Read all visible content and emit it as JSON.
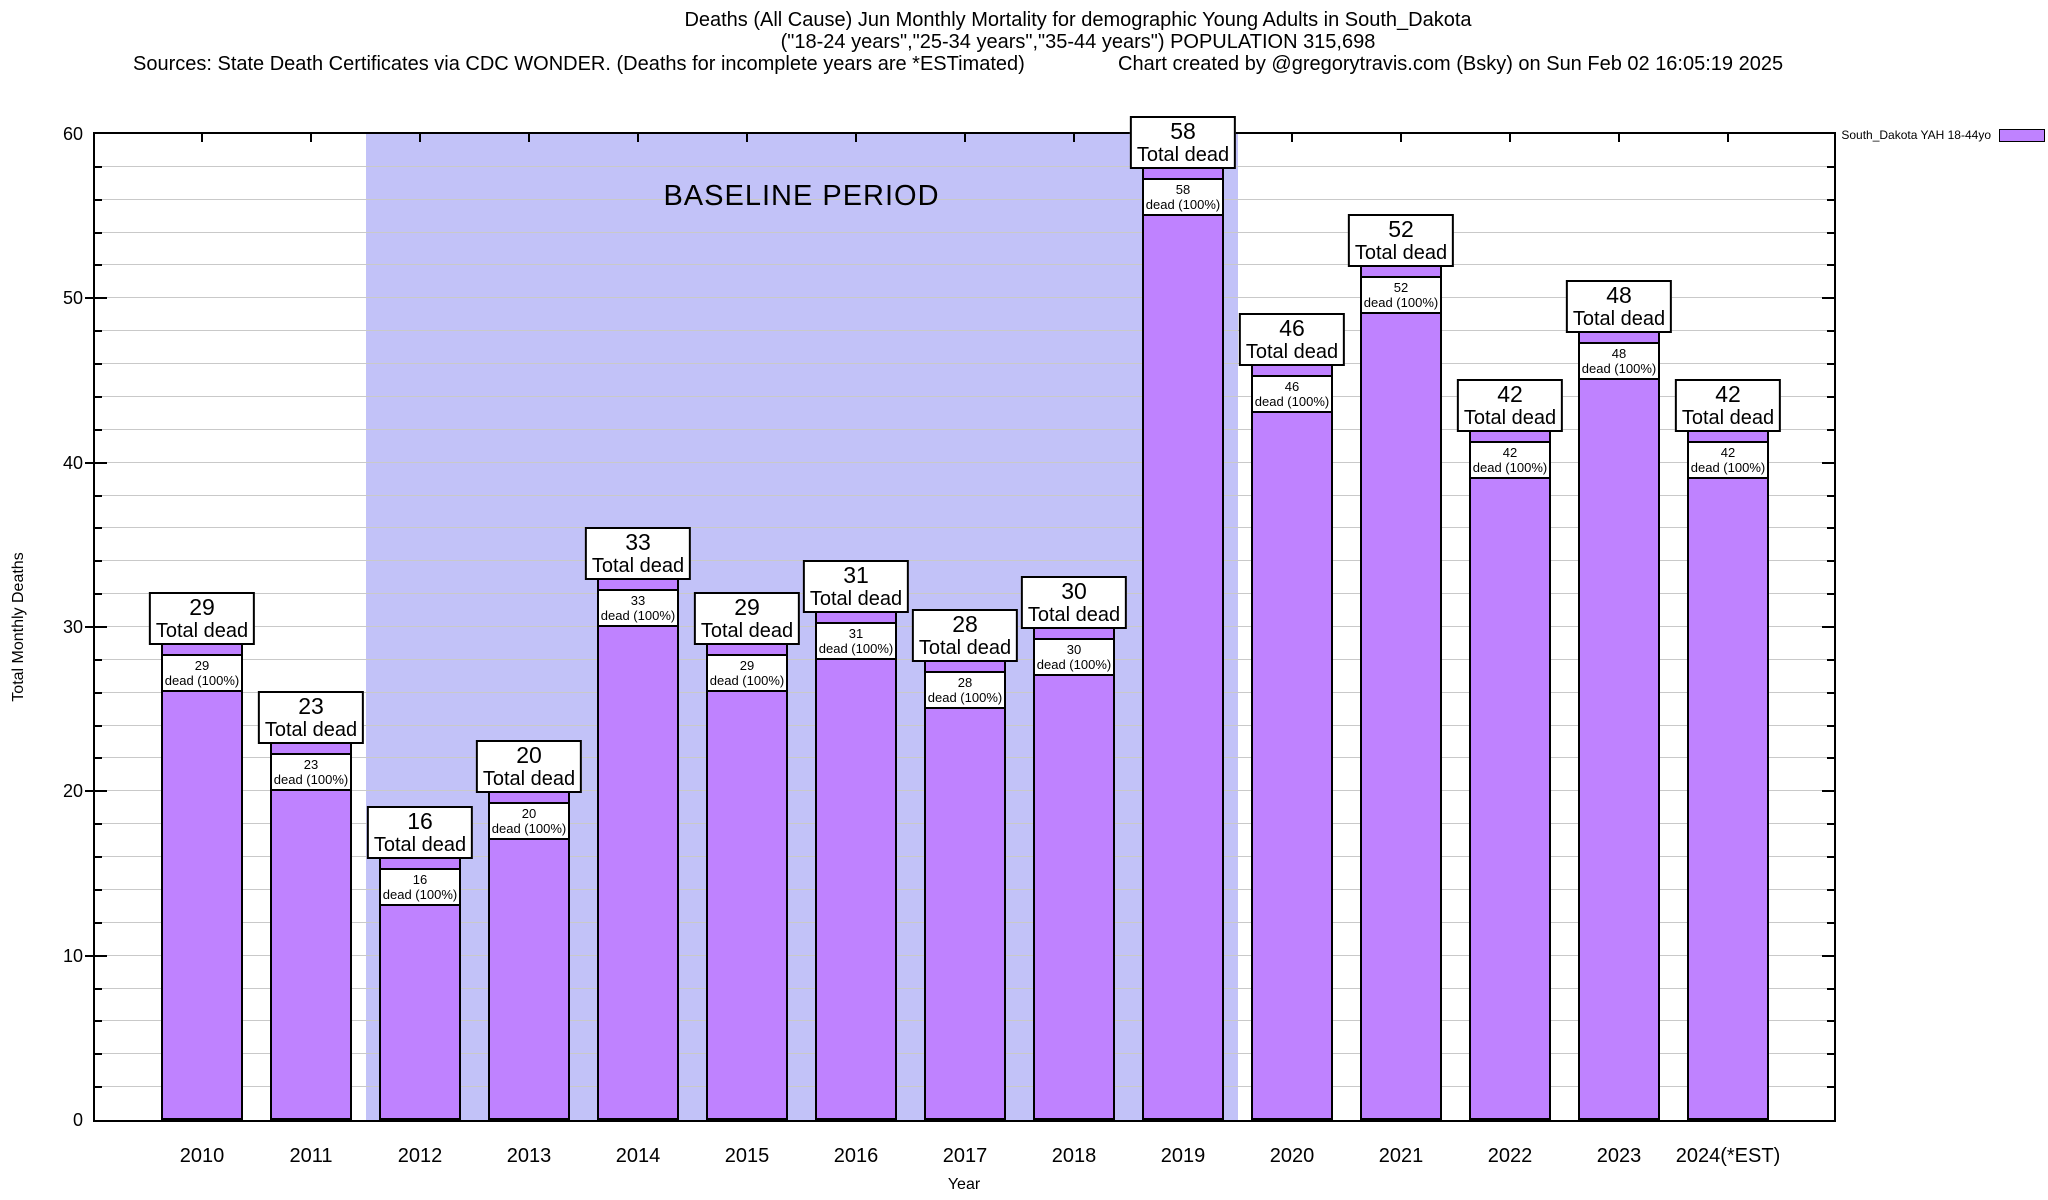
{
  "header": {
    "title_line1": "Deaths (All Cause) Jun Monthly Mortality for demographic Young Adults in South_Dakota",
    "title_line2": "(\"18-24 years\",\"25-34 years\",\"35-44 years\") POPULATION 315,698",
    "sources": "Sources: State Death Certificates via CDC WONDER. (Deaths for incomplete years are *ESTimated)",
    "created_by": "Chart created by @gregorytravis.com (Bsky) on Sun Feb 02 16:05:19 2025"
  },
  "legend": {
    "label": "South_Dakota YAH 18-44yo",
    "swatch_color": "#bf82ff"
  },
  "chart_data": {
    "type": "bar",
    "title": "Deaths (All Cause) Jun Monthly Mortality for demographic Young Adults in South_Dakota",
    "xlabel": "Year",
    "ylabel": "Total Monthly Deaths",
    "ylim": [
      0,
      60
    ],
    "ytick_major": 10,
    "ytick_minor": 2,
    "grid": true,
    "legend_position": "top-right",
    "categories": [
      "2010",
      "2011",
      "2012",
      "2013",
      "2014",
      "2015",
      "2016",
      "2017",
      "2018",
      "2019",
      "2020",
      "2021",
      "2022",
      "2023",
      "2024(*EST)"
    ],
    "values": [
      29,
      23,
      16,
      20,
      33,
      29,
      31,
      28,
      30,
      58,
      46,
      52,
      42,
      48,
      42
    ],
    "series_name": "South_Dakota YAH 18-44yo",
    "bar_color": "#bf82ff",
    "bar_top_label_suffix": "Total dead",
    "bar_inner_label_suffix": "dead (100%)",
    "baseline_region": {
      "label": "BASELINE PERIOD",
      "from_category": "2012",
      "to_category": "2019",
      "color": "#c2c2f8"
    }
  }
}
